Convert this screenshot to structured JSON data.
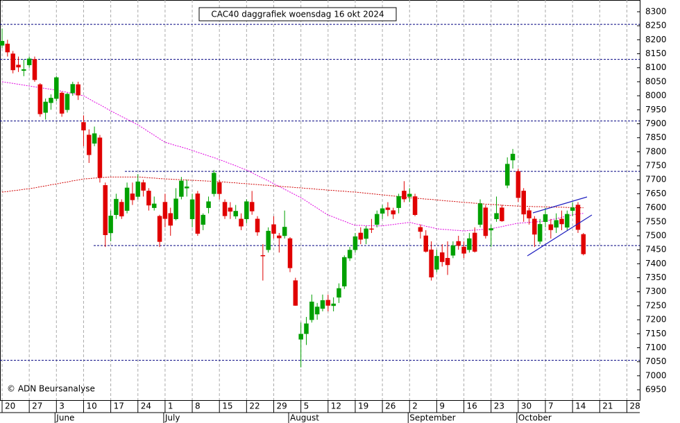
{
  "chart_data": {
    "type": "candlestick",
    "title": "CAC40 daggrafiek woensdag 16 okt 2024",
    "credit": "© ADN Beursanalyse",
    "categories": [
      "20",
      null,
      null,
      null,
      null,
      "27",
      null,
      null,
      null,
      null,
      "3",
      null,
      null,
      null,
      null,
      "10",
      null,
      null,
      null,
      null,
      "17",
      null,
      null,
      null,
      null,
      "24",
      null,
      null,
      null,
      null,
      "1",
      null,
      null,
      null,
      null,
      "8",
      null,
      null,
      null,
      null,
      "15",
      null,
      null,
      null,
      null,
      "22",
      null,
      null,
      null,
      null,
      "29",
      null,
      null,
      null,
      null,
      "5",
      null,
      null,
      null,
      null,
      "12",
      null,
      null,
      null,
      null,
      "19",
      null,
      null,
      null,
      null,
      "26",
      null,
      null,
      null,
      null,
      "2",
      null,
      null,
      null,
      null,
      "9",
      null,
      null,
      null,
      null,
      "16",
      null,
      null,
      null,
      null,
      "23",
      null,
      null,
      null,
      null,
      "30",
      null,
      null,
      null,
      null,
      "7",
      null,
      null,
      null,
      null,
      "14",
      null,
      null,
      null,
      null,
      "21",
      null,
      null,
      null,
      null,
      "28",
      null,
      null
    ],
    "months": [
      null,
      null,
      null,
      null,
      null,
      null,
      null,
      null,
      null,
      null,
      "June",
      null,
      null,
      null,
      null,
      null,
      null,
      null,
      null,
      null,
      null,
      null,
      null,
      null,
      null,
      null,
      null,
      null,
      null,
      null,
      "July",
      null,
      null,
      null,
      null,
      null,
      null,
      null,
      null,
      null,
      null,
      null,
      null,
      null,
      null,
      null,
      null,
      null,
      null,
      null,
      null,
      null,
      null,
      "August",
      null,
      null,
      null,
      null,
      null,
      null,
      null,
      null,
      null,
      null,
      null,
      null,
      null,
      null,
      null,
      null,
      null,
      null,
      null,
      null,
      null,
      "September",
      null,
      null,
      null,
      null,
      null,
      null,
      null,
      null,
      null,
      null,
      null,
      null,
      null,
      null,
      null,
      null,
      null,
      null,
      null,
      "October",
      null,
      null,
      null,
      null,
      null,
      null,
      null,
      null,
      null,
      null,
      null,
      null,
      null,
      null,
      null,
      null,
      null,
      null,
      null,
      null,
      null,
      null
    ],
    "open": [
      8180,
      8185,
      8150,
      8110,
      8090,
      8110,
      8130,
      8040,
      7940,
      7975,
      7990,
      8010,
      7950,
      8010,
      8040,
      7905,
      7860,
      7830,
      7850,
      7680,
      7510,
      7575,
      7620,
      7590,
      7650,
      7640,
      7690,
      7660,
      7600,
      7570,
      7620,
      7580,
      7560,
      7640,
      7670,
      7560,
      7650,
      7540,
      7600,
      7650,
      7690,
      7620,
      7600,
      7570,
      7560,
      7560,
      7620,
      7560,
      7430,
      7450,
      7540,
      7500,
      7500,
      7490,
      7340,
      7130,
      7150,
      7200,
      7220,
      7240,
      7270,
      7250,
      7280,
      7320,
      7420,
      7450,
      7510,
      7490,
      7525,
      7540,
      7580,
      7600,
      7590,
      7600,
      7660,
      7640,
      7640,
      7530,
      7500,
      7450,
      7380,
      7440,
      7420,
      7430,
      7480,
      7460,
      7450,
      7510,
      7540,
      7600,
      7520,
      7560,
      7600,
      7680,
      7770,
      7730,
      7660,
      7590,
      7560,
      7480,
      7550,
      7540,
      7530,
      7560,
      7530,
      7590,
      7610,
      7505,
      null,
      null,
      null,
      null,
      null,
      null,
      null,
      null,
      null,
      null
    ],
    "high": [
      8240,
      8200,
      8160,
      8140,
      8130,
      8140,
      8140,
      8045,
      7990,
      8005,
      8070,
      8015,
      8010,
      8050,
      8050,
      7930,
      7880,
      7890,
      7860,
      7690,
      7590,
      7650,
      7630,
      7690,
      7690,
      7720,
      7700,
      7670,
      7640,
      7575,
      7650,
      7600,
      7670,
      7710,
      7700,
      7650,
      7660,
      7580,
      7640,
      7735,
      7700,
      7630,
      7620,
      7610,
      7580,
      7630,
      7660,
      7570,
      7470,
      7530,
      7570,
      7510,
      7590,
      7495,
      7350,
      7190,
      7210,
      7290,
      7260,
      7290,
      7290,
      7280,
      7330,
      7430,
      7460,
      7510,
      7530,
      7535,
      7560,
      7590,
      7610,
      7620,
      7600,
      7650,
      7695,
      7670,
      7650,
      7540,
      7520,
      7480,
      7450,
      7470,
      7480,
      7480,
      7500,
      7480,
      7510,
      7530,
      7630,
      7610,
      7540,
      7640,
      7610,
      7780,
      7810,
      7740,
      7670,
      7600,
      7570,
      7560,
      7600,
      7560,
      7580,
      7590,
      7590,
      7620,
      7620,
      7510,
      null,
      null,
      null,
      null,
      null,
      null,
      null,
      null,
      null,
      null
    ],
    "low": [
      8170,
      8140,
      8080,
      8085,
      8070,
      8100,
      8050,
      7925,
      7915,
      7950,
      7980,
      7925,
      7940,
      8000,
      7985,
      7820,
      7760,
      7820,
      7690,
      7460,
      7480,
      7560,
      7560,
      7580,
      7610,
      7630,
      7640,
      7590,
      7590,
      7460,
      7530,
      7500,
      7555,
      7630,
      7640,
      7530,
      7500,
      7520,
      7580,
      7640,
      7630,
      7560,
      7560,
      7560,
      7520,
      7545,
      7575,
      7500,
      7340,
      7440,
      7490,
      7440,
      7490,
      7370,
      7250,
      7030,
      7110,
      7190,
      7200,
      7230,
      7230,
      7230,
      7260,
      7310,
      7410,
      7440,
      7470,
      7470,
      7510,
      7530,
      7560,
      7570,
      7560,
      7580,
      7620,
      7620,
      7570,
      7490,
      7440,
      7340,
      7370,
      7390,
      7360,
      7420,
      7450,
      7420,
      7440,
      7440,
      7530,
      7490,
      7460,
      7550,
      7550,
      7670,
      7740,
      7620,
      7550,
      7540,
      7460,
      7470,
      7530,
      7490,
      7510,
      7520,
      7520,
      7570,
      7510,
      7430,
      null,
      null,
      null,
      null,
      null,
      null,
      null,
      null,
      null,
      null
    ],
    "close": [
      8195,
      8156,
      8092,
      8102,
      8094,
      8132,
      8057,
      7935,
      7978,
      7992,
      8065,
      7937,
      8006,
      8041,
      8002,
      7877,
      7789,
      7865,
      7708,
      7503,
      7571,
      7631,
      7570,
      7671,
      7628,
      7693,
      7662,
      7609,
      7614,
      7479,
      7561,
      7537,
      7632,
      7696,
      7675,
      7629,
      7508,
      7574,
      7622,
      7724,
      7650,
      7571,
      7587,
      7588,
      7534,
      7622,
      7588,
      7513,
      7428,
      7517,
      7508,
      7492,
      7531,
      7385,
      7251,
      7149,
      7186,
      7264,
      7246,
      7269,
      7251,
      7257,
      7312,
      7423,
      7449,
      7497,
      7487,
      7525,
      7524,
      7577,
      7597,
      7593,
      7577,
      7641,
      7631,
      7649,
      7575,
      7515,
      7444,
      7352,
      7427,
      7407,
      7396,
      7465,
      7465,
      7437,
      7490,
      7444,
      7615,
      7500,
      7526,
      7580,
      7553,
      7756,
      7792,
      7636,
      7577,
      7563,
      7505,
      7541,
      7576,
      7521,
      7555,
      7542,
      7577,
      7600,
      7522,
      7435,
      null,
      null,
      null,
      null,
      null,
      null,
      null,
      null,
      null,
      null
    ],
    "up_color": "#00a000",
    "down_color": "#e00000",
    "lines": [
      {
        "color": "#e000e0",
        "values": [
          8050,
          8047,
          8044,
          8041,
          8038,
          8035,
          8032,
          8029,
          8026,
          8023,
          8020,
          8016,
          8012,
          8008,
          8004,
          8000,
          7989,
          7978,
          7968,
          7957,
          7946,
          7936,
          7926,
          7916,
          7906,
          7896,
          7884,
          7871,
          7859,
          7846,
          7834,
          7828,
          7822,
          7817,
          7811,
          7805,
          7798,
          7792,
          7785,
          7779,
          7772,
          7765,
          7757,
          7750,
          7742,
          7735,
          7725,
          7715,
          7706,
          7696,
          7686,
          7676,
          7666,
          7656,
          7646,
          7636,
          7624,
          7611,
          7599,
          7586,
          7574,
          7567,
          7559,
          7552,
          7544,
          7537,
          7537,
          7536,
          7536,
          7535,
          7535,
          7538,
          7540,
          7543,
          7545,
          7548,
          7543,
          7539,
          7534,
          7530,
          7525,
          7523,
          7522,
          7520,
          7519,
          7517,
          7519,
          7520,
          7522,
          7523,
          7525,
          7529,
          7533,
          7537,
          7541,
          7545,
          7546,
          7548,
          7549,
          7551,
          7552,
          7557,
          7561,
          7566,
          7570,
          7575,
          7578,
          7580,
          null,
          null,
          null,
          null,
          null,
          null,
          null,
          null,
          null,
          null
        ]
      },
      {
        "color": "#d00000",
        "values": [
          7656,
          7658,
          7661,
          7663,
          7666,
          7668,
          7671,
          7675,
          7678,
          7682,
          7685,
          7689,
          7692,
          7696,
          7699,
          7703,
          7704,
          7706,
          7707,
          7709,
          7710,
          7710,
          7710,
          7710,
          7710,
          7710,
          7709,
          7707,
          7706,
          7704,
          7703,
          7702,
          7701,
          7700,
          7699,
          7698,
          7697,
          7696,
          7695,
          7694,
          7693,
          7692,
          7690,
          7689,
          7687,
          7686,
          7684,
          7683,
          7681,
          7680,
          7678,
          7677,
          7675,
          7674,
          7672,
          7671,
          7669,
          7668,
          7666,
          7665,
          7663,
          7662,
          7660,
          7659,
          7657,
          7656,
          7654,
          7652,
          7650,
          7648,
          7646,
          7644,
          7642,
          7640,
          7638,
          7636,
          7634,
          7633,
          7631,
          7630,
          7628,
          7626,
          7624,
          7623,
          7621,
          7619,
          7618,
          7616,
          7615,
          7613,
          7612,
          7611,
          7609,
          7608,
          7607,
          7606,
          7605,
          7605,
          7604,
          7604,
          7603,
          7603,
          7602,
          7602,
          7601,
          7601,
          7600,
          7600,
          null,
          null,
          null,
          null,
          null,
          null,
          null,
          null,
          null,
          null
        ]
      }
    ],
    "levels": [
      8255,
      8130,
      7910,
      7730,
      7465,
      7055
    ],
    "level_color": "#000080",
    "ylim": [
      6913,
      8342
    ],
    "yticks": [
      6950,
      7000,
      7050,
      7100,
      7150,
      7200,
      7250,
      7300,
      7350,
      7400,
      7450,
      7500,
      7550,
      7600,
      7650,
      7700,
      7750,
      7800,
      7850,
      7900,
      7950,
      8000,
      8050,
      8100,
      8150,
      8200,
      8250,
      8300
    ],
    "x_grid": true
  }
}
